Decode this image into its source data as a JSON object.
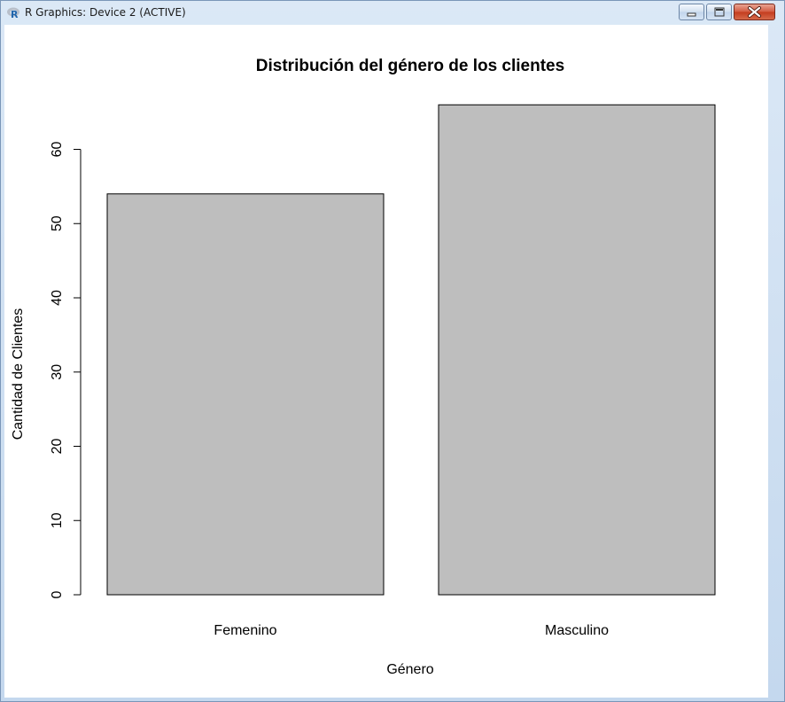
{
  "window": {
    "title": "R Graphics: Device 2 (ACTIVE)",
    "icon": "r-logo-icon",
    "controls": [
      "minimize-icon",
      "maximize-icon",
      "close-icon"
    ]
  },
  "chart_data": {
    "type": "bar",
    "title": "Distribución del género de los clientes",
    "xlabel": "Género",
    "ylabel": "Cantidad de Clientes",
    "categories": [
      "Femenino",
      "Masculino"
    ],
    "values": [
      54,
      66
    ],
    "ylim": [
      0,
      66
    ],
    "yticks": [
      "0",
      "10",
      "20",
      "30",
      "40",
      "50",
      "60"
    ],
    "bar_color": "#bebebe",
    "grid": false,
    "legend": "none"
  }
}
